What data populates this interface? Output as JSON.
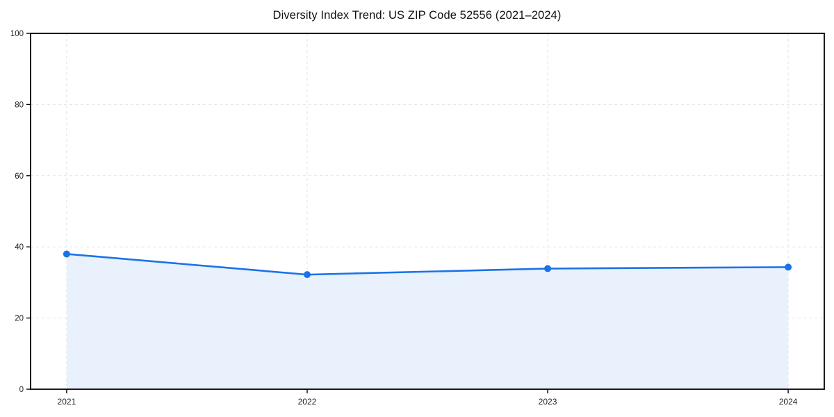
{
  "title": "Diversity Index Trend: US ZIP Code 52556 (2021–2024)",
  "colors": {
    "line": "#1a73e8",
    "marker": "#1a73e8",
    "area_fill": "#e9f1fd",
    "grid": "#e2e2e2",
    "spine": "#000000",
    "tick_label": "#1f1f1f"
  },
  "chart_data": {
    "type": "area",
    "title": "Diversity Index Trend: US ZIP Code 52556 (2021–2024)",
    "x": [
      2021,
      2022,
      2023,
      2024
    ],
    "values": [
      38,
      32.2,
      33.9,
      34.3
    ],
    "series": [
      {
        "name": "Diversity Index",
        "values": [
          38,
          32.2,
          33.9,
          34.3
        ]
      }
    ],
    "xlabel": "",
    "ylabel": "",
    "ylim": [
      0,
      100
    ],
    "yticks": [
      0,
      20,
      40,
      60,
      80,
      100
    ],
    "xtick_labels": [
      "2021",
      "2022",
      "2023",
      "2024"
    ],
    "grid": true,
    "grid_style": "dashed",
    "legend_position": "none",
    "marker": "circle"
  }
}
